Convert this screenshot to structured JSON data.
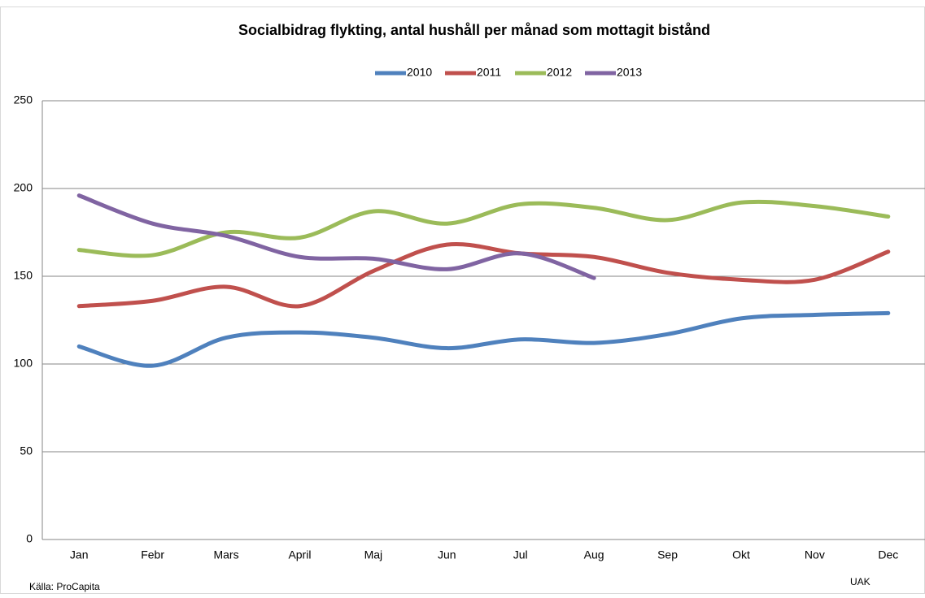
{
  "chart_data": {
    "type": "line",
    "title": "Socialbidrag flykting, antal hushåll per månad som mottagit bistånd",
    "categories": [
      "Jan",
      "Febr",
      "Mars",
      "April",
      "Maj",
      "Jun",
      "Jul",
      "Aug",
      "Sep",
      "Okt",
      "Nov",
      "Dec"
    ],
    "series": [
      {
        "name": "2010",
        "color": "#4f81bd",
        "values": [
          110,
          99,
          115,
          118,
          115,
          109,
          114,
          112,
          117,
          126,
          128,
          129
        ]
      },
      {
        "name": "2011",
        "color": "#c0504d",
        "values": [
          133,
          136,
          144,
          133,
          153,
          168,
          163,
          161,
          152,
          148,
          148,
          164
        ]
      },
      {
        "name": "2012",
        "color": "#9bbb59",
        "values": [
          165,
          162,
          175,
          172,
          187,
          180,
          191,
          189,
          182,
          192,
          190,
          184
        ]
      },
      {
        "name": "2013",
        "color": "#8064a2",
        "values": [
          196,
          180,
          173,
          161,
          160,
          154,
          163,
          149,
          null,
          null,
          null,
          null
        ]
      }
    ],
    "ylim": [
      0,
      250
    ],
    "yticks": [
      0,
      50,
      100,
      150,
      200,
      250
    ],
    "grid": true,
    "smooth": true,
    "legend": "top",
    "source": "Källa: ProCapita",
    "credit": "UAK"
  }
}
